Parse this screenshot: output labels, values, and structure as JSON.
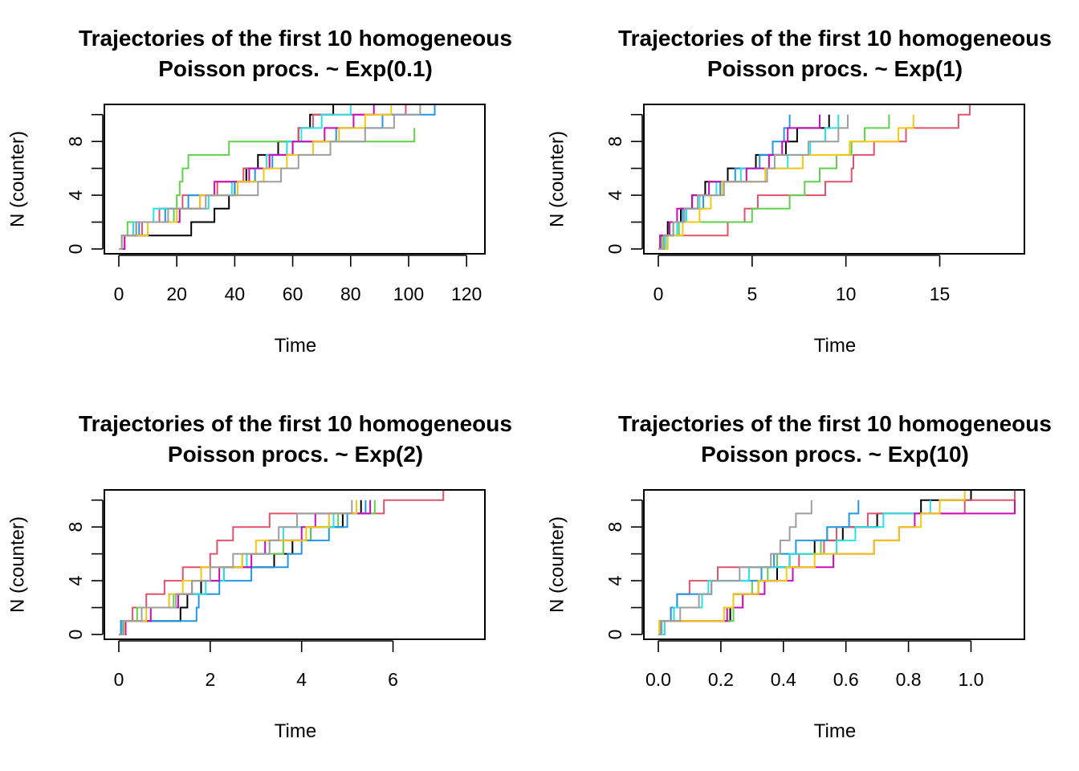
{
  "palette": [
    "#000000",
    "#DF536B",
    "#61D04F",
    "#2297E6",
    "#28E2E5",
    "#CD0BBC",
    "#F5C710",
    "#9E9E9E"
  ],
  "chart_data": [
    {
      "type": "line",
      "title_line1": "Trajectories of the first 10 homogeneous",
      "title_line2": "Poisson procs. ~ Exp(0.1)",
      "xlabel": "Time",
      "ylabel": "N (counter)",
      "xlim": [
        0,
        123
      ],
      "ylim": [
        0,
        10.4
      ],
      "xticks": [
        0,
        20,
        40,
        60,
        80,
        100,
        120
      ],
      "xtick_labels": [
        "0",
        "20",
        "40",
        "60",
        "80",
        "100",
        "120"
      ],
      "yticks": [
        0,
        2,
        4,
        6,
        8,
        10
      ],
      "ytick_labels": [
        "0",
        "",
        "4",
        "",
        "8",
        ""
      ],
      "series": [
        {
          "color": "#000000",
          "times": [
            0,
            1,
            25,
            33,
            38,
            40,
            44,
            48,
            55,
            62,
            66,
            74,
            98
          ]
        },
        {
          "color": "#DF536B",
          "times": [
            0,
            2,
            8,
            14,
            22,
            34,
            43,
            52,
            58,
            62,
            67,
            99
          ]
        },
        {
          "color": "#61D04F",
          "times": [
            0,
            1,
            3,
            19,
            20,
            21,
            22,
            24,
            38,
            102
          ]
        },
        {
          "color": "#2297E6",
          "times": [
            0,
            1,
            7,
            16,
            24,
            40,
            47,
            53,
            60,
            75,
            91,
            109
          ]
        },
        {
          "color": "#28E2E5",
          "times": [
            0,
            1,
            5,
            12,
            31,
            39,
            45,
            51,
            58,
            63,
            70,
            80
          ]
        },
        {
          "color": "#CD0BBC",
          "times": [
            0,
            2,
            6,
            21,
            28,
            33,
            45,
            52,
            60,
            71,
            81,
            88
          ]
        },
        {
          "color": "#F5C710",
          "times": [
            0,
            1,
            10,
            20,
            28,
            41,
            50,
            58,
            67,
            76,
            85,
            94
          ]
        },
        {
          "color": "#9E9E9E",
          "times": [
            0,
            1,
            6,
            17,
            30,
            48,
            56,
            62,
            73,
            85,
            95,
            104
          ]
        }
      ]
    },
    {
      "type": "line",
      "title_line1": "Trajectories of the first 10 homogeneous",
      "title_line2": "Poisson procs. ~ Exp(1)",
      "xlabel": "Time",
      "ylabel": "N (counter)",
      "xlim": [
        0,
        19
      ],
      "ylim": [
        0,
        10.4
      ],
      "xticks": [
        0,
        5,
        10,
        15
      ],
      "xtick_labels": [
        "0",
        "5",
        "10",
        "15"
      ],
      "yticks": [
        0,
        2,
        4,
        6,
        8,
        10
      ],
      "ytick_labels": [
        "0",
        "",
        "4",
        "",
        "8",
        ""
      ],
      "series": [
        {
          "color": "#000000",
          "times": [
            0,
            0.1,
            0.5,
            1.2,
            1.8,
            2.5,
            3.7,
            5.2,
            6.8,
            7.4,
            9.1
          ]
        },
        {
          "color": "#DF536B",
          "times": [
            0,
            0.1,
            3.7,
            4.6,
            5.3,
            8.9,
            10.3,
            10.4,
            11.5,
            13.2,
            16.0,
            16.6
          ]
        },
        {
          "color": "#61D04F",
          "times": [
            0,
            0.2,
            1.1,
            5.0,
            7.0,
            7.8,
            8.6,
            9.5,
            10.3,
            11.0,
            12.3
          ]
        },
        {
          "color": "#2297E6",
          "times": [
            0,
            0.3,
            0.8,
            1.3,
            2.4,
            3.3,
            4.1,
            5.4,
            6.1,
            6.7,
            7.0
          ]
        },
        {
          "color": "#28E2E5",
          "times": [
            0,
            0.4,
            1.0,
            1.5,
            2.2,
            3.1,
            4.4,
            6.9,
            8.1,
            8.9,
            9.6
          ]
        },
        {
          "color": "#CD0BBC",
          "times": [
            0,
            0.1,
            0.6,
            1.0,
            1.8,
            2.7,
            4.7,
            5.9,
            6.6,
            6.9,
            8.6
          ]
        },
        {
          "color": "#F5C710",
          "times": [
            0,
            0.5,
            1.3,
            2.2,
            2.8,
            3.4,
            5.7,
            7.7,
            10.2,
            12.8,
            13.6
          ]
        },
        {
          "color": "#9E9E9E",
          "times": [
            0,
            0.3,
            0.8,
            1.4,
            2.1,
            3.5,
            5.8,
            6.2,
            8.0,
            9.6,
            10.1
          ]
        }
      ]
    },
    {
      "type": "line",
      "title_line1": "Trajectories of the first 10 homogeneous",
      "title_line2": "Poisson procs. ~ Exp(2)",
      "xlabel": "Time",
      "ylabel": "N (counter)",
      "xlim": [
        0,
        7.8
      ],
      "ylim": [
        0,
        10.4
      ],
      "xticks": [
        0,
        2,
        4,
        6
      ],
      "xtick_labels": [
        "0",
        "2",
        "4",
        "6"
      ],
      "yticks": [
        0,
        2,
        4,
        6,
        8,
        10
      ],
      "ytick_labels": [
        "0",
        "",
        "4",
        "",
        "8",
        ""
      ],
      "series": [
        {
          "color": "#000000",
          "times": [
            0,
            0.05,
            1.35,
            1.5,
            1.8,
            2.3,
            3.4,
            3.8,
            4.2,
            4.9,
            5.3
          ]
        },
        {
          "color": "#DF536B",
          "times": [
            0,
            0.05,
            0.3,
            0.6,
            1.0,
            1.4,
            2.0,
            2.15,
            2.5,
            3.3,
            5.8,
            7.1
          ]
        },
        {
          "color": "#61D04F",
          "times": [
            0,
            0.1,
            0.4,
            1.2,
            1.6,
            2.3,
            2.7,
            3.6,
            4.2,
            4.8,
            5.6
          ]
        },
        {
          "color": "#2297E6",
          "times": [
            0,
            0.05,
            1.7,
            1.75,
            2.2,
            2.9,
            3.7,
            4.0,
            4.6,
            5.0,
            5.4
          ]
        },
        {
          "color": "#28E2E5",
          "times": [
            0,
            0.08,
            0.5,
            1.1,
            1.9,
            2.3,
            2.8,
            3.3,
            3.6,
            4.7,
            5.2
          ]
        },
        {
          "color": "#CD0BBC",
          "times": [
            0,
            0.15,
            0.7,
            1.3,
            1.6,
            2.2,
            2.9,
            3.2,
            4.0,
            4.3,
            5.5
          ]
        },
        {
          "color": "#F5C710",
          "times": [
            0,
            0.12,
            0.6,
            1.1,
            1.4,
            1.8,
            2.7,
            3.0,
            4.1,
            4.6,
            5.2
          ]
        },
        {
          "color": "#9E9E9E",
          "times": [
            0,
            0.1,
            0.5,
            1.25,
            1.6,
            2.0,
            2.5,
            3.3,
            3.5,
            3.9,
            5.1
          ]
        }
      ]
    },
    {
      "type": "line",
      "title_line1": "Trajectories of the first 10 homogeneous",
      "title_line2": "Poisson procs. ~ Exp(10)",
      "xlabel": "Time",
      "ylabel": "N (counter)",
      "xlim": [
        0,
        1.14
      ],
      "ylim": [
        0,
        10.4
      ],
      "xticks": [
        0.0,
        0.2,
        0.4,
        0.6,
        0.8,
        1.0
      ],
      "xtick_labels": [
        "0.0",
        "0.2",
        "0.4",
        "0.6",
        "0.8",
        "1.0"
      ],
      "yticks": [
        0,
        2,
        4,
        6,
        8,
        10
      ],
      "ytick_labels": [
        "0",
        "",
        "4",
        "",
        "8",
        ""
      ],
      "series": [
        {
          "color": "#000000",
          "times": [
            0,
            0.005,
            0.23,
            0.24,
            0.32,
            0.38,
            0.42,
            0.5,
            0.59,
            0.7,
            0.84,
            1.0
          ]
        },
        {
          "color": "#DF536B",
          "times": [
            0,
            0.02,
            0.04,
            0.06,
            0.1,
            0.19,
            0.45,
            0.53,
            0.57,
            0.67,
            0.98,
            1.14
          ]
        },
        {
          "color": "#61D04F",
          "times": [
            0,
            0.004,
            0.24,
            0.27,
            0.3,
            0.35,
            0.38,
            0.52,
            0.54
          ]
        },
        {
          "color": "#2297E6",
          "times": [
            0,
            0.01,
            0.04,
            0.06,
            0.17,
            0.33,
            0.37,
            0.44,
            0.54,
            0.61,
            0.64
          ]
        },
        {
          "color": "#28E2E5",
          "times": [
            0,
            0.02,
            0.05,
            0.14,
            0.16,
            0.29,
            0.42,
            0.57,
            0.63,
            0.72,
            0.87
          ]
        },
        {
          "color": "#CD0BBC",
          "times": [
            0,
            0.006,
            0.22,
            0.27,
            0.34,
            0.43,
            0.56,
            0.69,
            0.77,
            0.82,
            1.14
          ]
        },
        {
          "color": "#F5C710",
          "times": [
            0,
            0.003,
            0.21,
            0.24,
            0.32,
            0.41,
            0.5,
            0.69,
            0.77,
            0.84,
            0.9,
            0.98
          ]
        },
        {
          "color": "#9E9E9E",
          "times": [
            0,
            0.008,
            0.07,
            0.13,
            0.17,
            0.26,
            0.36,
            0.39,
            0.42,
            0.44,
            0.49
          ]
        }
      ]
    }
  ]
}
